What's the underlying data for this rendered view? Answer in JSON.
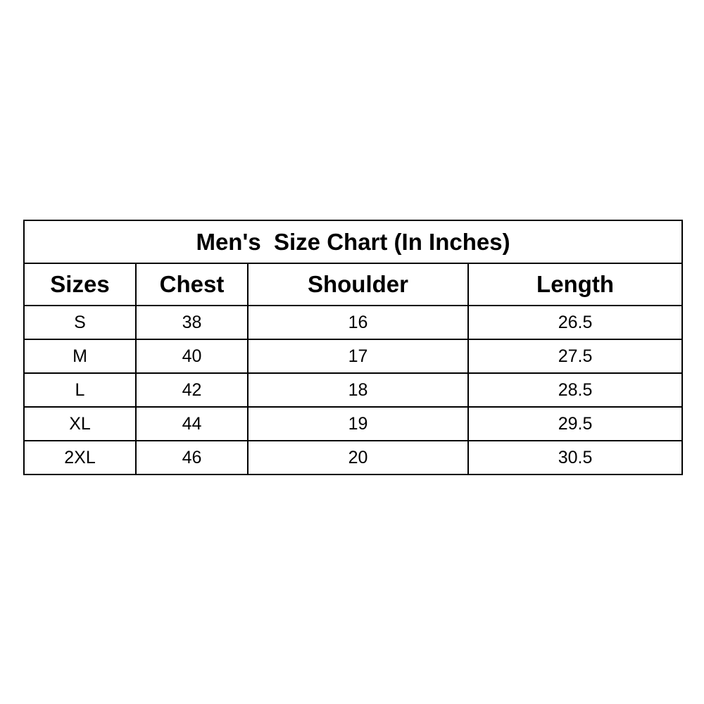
{
  "title": "Men's  Size Chart (In Inches)",
  "columns": [
    "Sizes",
    "Chest",
    "Shoulder",
    "Length"
  ],
  "rows": [
    [
      "S",
      "38",
      "16",
      "26.5"
    ],
    [
      "M",
      "40",
      "17",
      "27.5"
    ],
    [
      "L",
      "42",
      "18",
      "28.5"
    ],
    [
      "XL",
      "44",
      "19",
      "29.5"
    ],
    [
      "2XL",
      "46",
      "20",
      "30.5"
    ]
  ]
}
